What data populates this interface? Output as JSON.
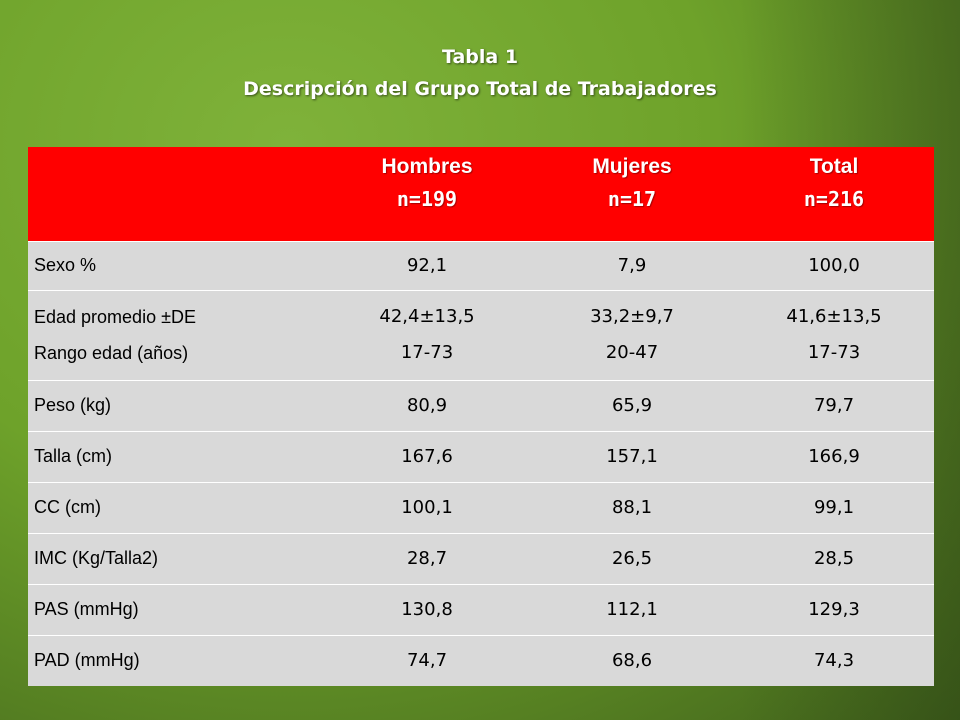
{
  "title": {
    "line1": "Tabla 1",
    "line2": "Descripción del Grupo Total de Trabajadores"
  },
  "table": {
    "columns": [
      {
        "name": "Hombres",
        "n": "n=199"
      },
      {
        "name": "Mujeres",
        "n": "n=17"
      },
      {
        "name": "Total",
        "n": "n=216"
      }
    ],
    "rows": [
      {
        "label": "Sexo %",
        "values": [
          "92,1",
          "7,9",
          "100,0"
        ]
      },
      {
        "label": "Edad promedio ±DE",
        "label2": "Rango edad (años)",
        "values": [
          "42,4±13,5",
          "33,2±9,7",
          "41,6±13,5"
        ],
        "values2": [
          "17-73",
          "20-47",
          "17-73"
        ]
      },
      {
        "label": "Peso (kg)",
        "values": [
          "80,9",
          "65,9",
          "79,7"
        ]
      },
      {
        "label": "Talla (cm)",
        "values": [
          "167,6",
          "157,1",
          "166,9"
        ]
      },
      {
        "label": "CC (cm)",
        "values": [
          "100,1",
          "88,1",
          "99,1"
        ]
      },
      {
        "label": "IMC (Kg/Talla2)",
        "values": [
          "28,7",
          "26,5",
          "28,5"
        ]
      },
      {
        "label": "PAS (mmHg)",
        "values": [
          "130,8",
          "112,1",
          "129,3"
        ]
      },
      {
        "label": "PAD (mmHg)",
        "values": [
          "74,7",
          "68,6",
          "74,3"
        ]
      }
    ]
  },
  "colors": {
    "header_bg": "#ff0000",
    "row_bg": "#d9d9d9",
    "background": "#6ea22a"
  }
}
